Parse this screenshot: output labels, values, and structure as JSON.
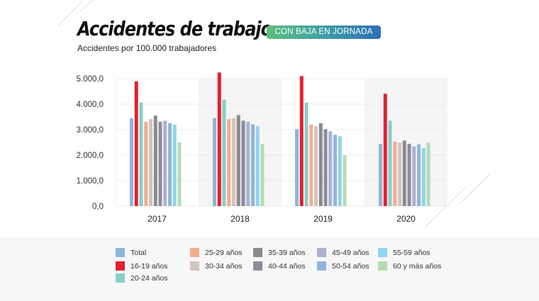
{
  "header": {
    "title": "Accidentes de trabajo",
    "subtitle": "Accidentes por 100.000 trabajadores",
    "badge": "CON BAJA EN JORNADA"
  },
  "chart_data": {
    "type": "bar",
    "title": "Accidentes de trabajo",
    "subtitle": "Accidentes por 100.000 trabajadores",
    "xlabel": "",
    "ylabel": "",
    "categories": [
      "2017",
      "2018",
      "2019",
      "2020"
    ],
    "ylim": [
      0,
      5000
    ],
    "yticks": [
      0,
      1000,
      2000,
      3000,
      4000,
      5000
    ],
    "ytick_labels": [
      "0,0",
      "1.000,0",
      "2.000,0",
      "3.000,0",
      "4.000,0",
      "5.000,0"
    ],
    "grid": true,
    "legend_position": "bottom",
    "series": [
      {
        "name": "Total",
        "color": "#8fb5da",
        "values": [
          3450,
          3450,
          3020,
          2440
        ]
      },
      {
        "name": "16-19 años",
        "color": "#e3202f",
        "values": [
          4890,
          5240,
          5100,
          4410
        ]
      },
      {
        "name": "20-24 años",
        "color": "#86cfc8",
        "values": [
          4060,
          4180,
          4060,
          3350
        ]
      },
      {
        "name": "25-29 años",
        "color": "#f2ad8f",
        "values": [
          3310,
          3410,
          3200,
          2530
        ]
      },
      {
        "name": "30-34 años",
        "color": "#d4c4bc",
        "values": [
          3410,
          3450,
          3140,
          2490
        ]
      },
      {
        "name": "35-39 años",
        "color": "#8a8a8a",
        "values": [
          3550,
          3570,
          3250,
          2570
        ]
      },
      {
        "name": "40-44 años",
        "color": "#8c8b9e",
        "values": [
          3310,
          3350,
          3020,
          2440
        ]
      },
      {
        "name": "45-49 años",
        "color": "#aeb0cf",
        "values": [
          3350,
          3310,
          2930,
          2340
        ]
      },
      {
        "name": "50-54 años",
        "color": "#8db6dd",
        "values": [
          3250,
          3210,
          2800,
          2420
        ]
      },
      {
        "name": "55-59 años",
        "color": "#92d3f0",
        "values": [
          3190,
          3130,
          2740,
          2280
        ]
      },
      {
        "name": "60 y más años",
        "color": "#b5dbb4",
        "values": [
          2500,
          2440,
          1990,
          2490
        ]
      }
    ]
  }
}
